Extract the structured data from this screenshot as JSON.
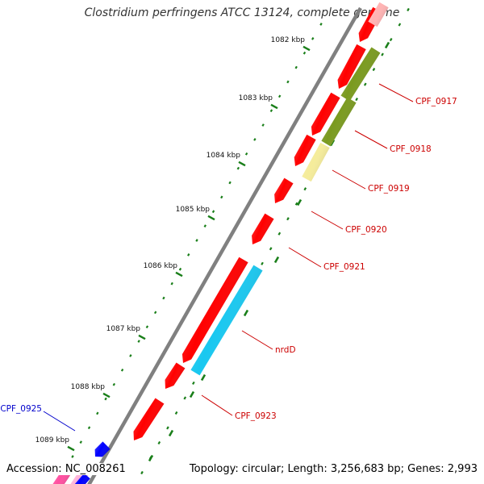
{
  "title": "Clostridium perfringens ATCC 13124, complete genome",
  "footer": {
    "accession": "Accession: NC_008261",
    "summary": "Topology: circular; Length: 3,256,683 bp; Genes: 2,993"
  },
  "colors": {
    "backbone": "#808080",
    "cds": "#ff0000",
    "olive": "#7a9a1f",
    "pale_yellow": "#f5ec9a",
    "cyan": "#19c8f0",
    "blue": "#0000ff",
    "pink": "#ff69b4",
    "label_red": "#cc0000",
    "label_blue": "#0000cc",
    "dot_green": "#1a7f1a"
  },
  "ticks": [
    {
      "label": "1082 kbp"
    },
    {
      "label": "1083 kbp"
    },
    {
      "label": "1084 kbp"
    },
    {
      "label": "1085 kbp"
    },
    {
      "label": "1086 kbp"
    },
    {
      "label": "1087 kbp"
    },
    {
      "label": "1088 kbp"
    },
    {
      "label": "1089 kbp"
    }
  ],
  "genes": [
    {
      "label": "CPF_0917"
    },
    {
      "label": "CPF_0918"
    },
    {
      "label": "CPF_0919"
    },
    {
      "label": "CPF_0920"
    },
    {
      "label": "CPF_0921"
    },
    {
      "label": "nrdD"
    },
    {
      "label": "CPF_0923"
    },
    {
      "label": "CPF_0925"
    }
  ]
}
